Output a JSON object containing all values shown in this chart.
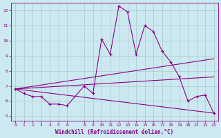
{
  "xlabel": "Windchill (Refroidissement éolien,°C)",
  "xlim": [
    -0.5,
    23.5
  ],
  "ylim": [
    4.7,
    12.5
  ],
  "xticks": [
    0,
    1,
    2,
    3,
    4,
    5,
    6,
    8,
    9,
    10,
    11,
    12,
    13,
    14,
    15,
    16,
    17,
    18,
    19,
    20,
    21,
    22,
    23
  ],
  "yticks": [
    5,
    6,
    7,
    8,
    9,
    10,
    11,
    12
  ],
  "bg_color": "#cce8f0",
  "line_color": "#880088",
  "grid_color": "#aacccc",
  "series_main": {
    "x": [
      0,
      1,
      2,
      3,
      4,
      5,
      6,
      8,
      9,
      10,
      11,
      12,
      13,
      14,
      15,
      16,
      17,
      18,
      19,
      20,
      21,
      22,
      23
    ],
    "y": [
      6.8,
      6.5,
      6.3,
      6.3,
      5.8,
      5.8,
      5.7,
      7.0,
      6.5,
      10.1,
      9.1,
      12.3,
      11.9,
      9.1,
      11.0,
      10.6,
      9.3,
      8.6,
      7.6,
      6.0,
      6.3,
      6.4,
      5.2
    ]
  },
  "trend_lines": [
    {
      "x": [
        0,
        23
      ],
      "y": [
        6.8,
        8.8
      ]
    },
    {
      "x": [
        0,
        23
      ],
      "y": [
        6.8,
        7.6
      ]
    },
    {
      "x": [
        0,
        23
      ],
      "y": [
        6.8,
        5.2
      ]
    }
  ]
}
